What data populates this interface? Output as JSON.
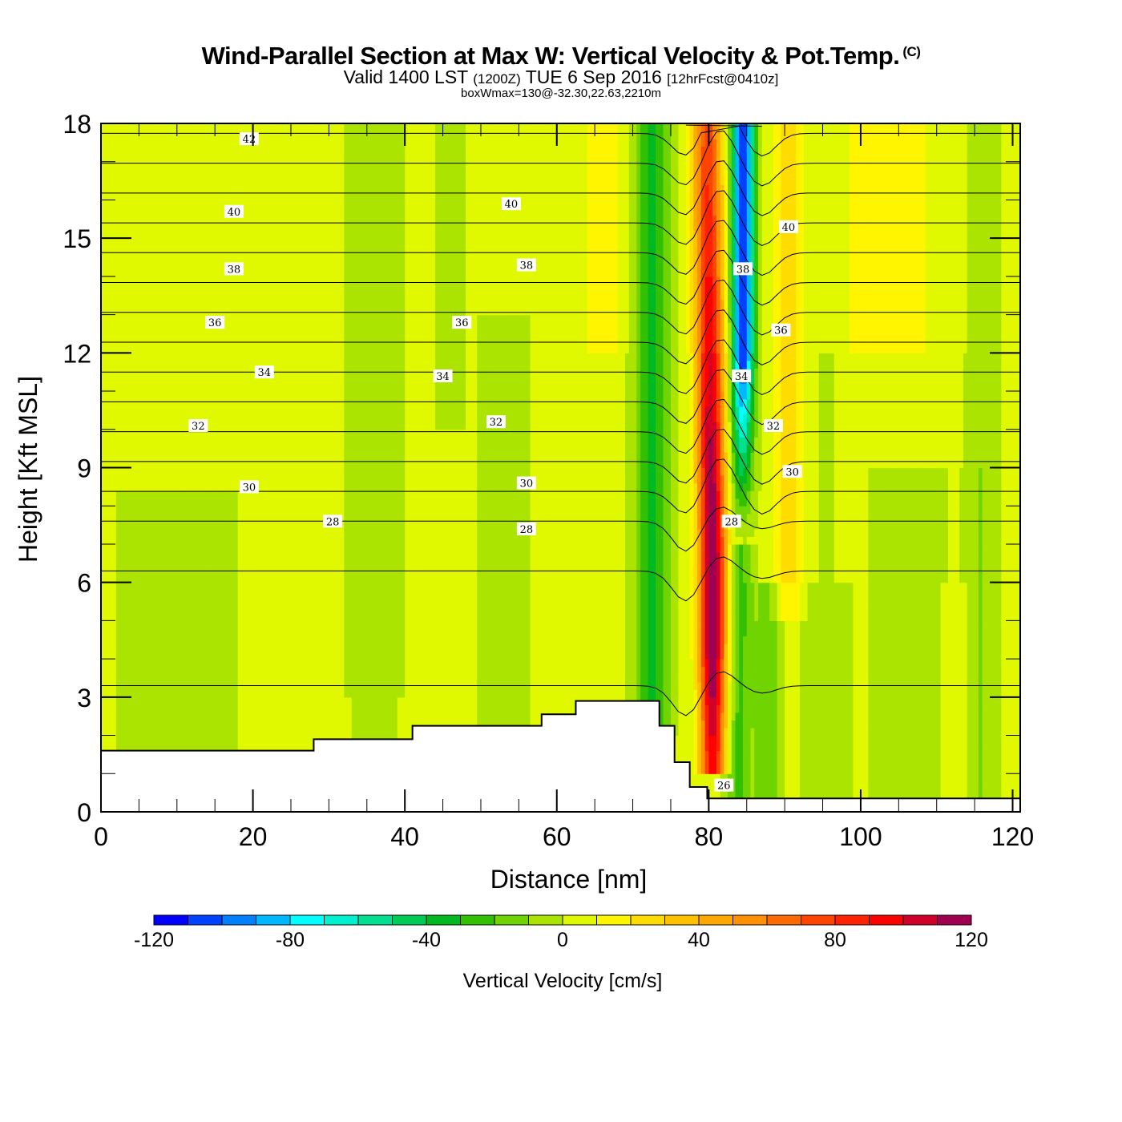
{
  "header": {
    "title": "Wind-Parallel Section at Max W: Vertical Velocity & Pot.Temp.",
    "copyright": "(C)",
    "valid_prefix": "Valid 1400 LST",
    "valid_utc": "(1200Z)",
    "valid_date": "TUE 6 Sep 2016",
    "forecast": "[12hrFcst@0410z]",
    "box_note": "boxWmax=130@-32.30,22.63,2210m"
  },
  "chart_data": {
    "type": "heatmap",
    "title": "Wind-Parallel Section at Max W: Vertical Velocity & Pot.Temp.",
    "xlabel": "Distance [nm]",
    "ylabel": "Height [Kft MSL]",
    "xlim": [
      0,
      121
    ],
    "ylim": [
      0,
      18
    ],
    "x_ticks": [
      "0",
      "20",
      "40",
      "60",
      "80",
      "100",
      "120"
    ],
    "y_ticks": [
      "0",
      "3",
      "6",
      "9",
      "12",
      "15",
      "18"
    ],
    "colorbar": {
      "label": "Vertical Velocity [cm/s]",
      "min": -120,
      "max": 120,
      "step": 10,
      "tick_labels": [
        "-120",
        "-80",
        "-40",
        "0",
        "40",
        "80",
        "120"
      ],
      "colors": [
        "#0000ff",
        "#0040ff",
        "#0080ff",
        "#00b8ff",
        "#00ffff",
        "#00f0d0",
        "#00e090",
        "#00cc55",
        "#00b820",
        "#33c000",
        "#70d400",
        "#aae400",
        "#e0f800",
        "#fff500",
        "#ffdc00",
        "#ffc000",
        "#ffa800",
        "#ff9000",
        "#ff6a00",
        "#ff4400",
        "#ff2200",
        "#ff0000",
        "#d00028",
        "#a00050"
      ]
    },
    "features": [
      {
        "name": "updraft core",
        "x_center_nm": 80.5,
        "max_cm_s": 130,
        "z_top_kft": 18
      },
      {
        "name": "downdraft core",
        "x_center_nm": 84.5,
        "min_cm_s": -115,
        "z_range_kft": [
          8,
          18
        ]
      }
    ],
    "terrain_kft": [
      {
        "x": [
          0,
          28
        ],
        "z": 1.6
      },
      {
        "x": [
          28,
          41
        ],
        "z": 1.9
      },
      {
        "x": [
          41,
          58
        ],
        "z": 2.25
      },
      {
        "x": [
          58,
          62.5
        ],
        "z": 2.55
      },
      {
        "x": [
          62.5,
          73.5
        ],
        "z": 2.9
      },
      {
        "x": [
          73.5,
          75.5
        ],
        "z": 2.25
      },
      {
        "x": [
          75.5,
          77.5
        ],
        "z": 1.3
      },
      {
        "x": [
          77.5,
          79.8
        ],
        "z": 0.65
      },
      {
        "x": [
          79.8,
          121
        ],
        "z": 0.35
      }
    ],
    "theta_contours": {
      "units": "C",
      "interval": 1,
      "labeled_values": [
        "42",
        "40",
        "38",
        "36",
        "34",
        "32",
        "30",
        "28",
        "26"
      ],
      "labels": [
        {
          "text": "42",
          "x": 19.5,
          "z": 17.6
        },
        {
          "text": "40",
          "x": 17.5,
          "z": 15.7
        },
        {
          "text": "40",
          "x": 54,
          "z": 15.9
        },
        {
          "text": "40",
          "x": 90.5,
          "z": 15.3
        },
        {
          "text": "38",
          "x": 17.5,
          "z": 14.2
        },
        {
          "text": "38",
          "x": 56,
          "z": 14.3
        },
        {
          "text": "38",
          "x": 84.5,
          "z": 14.2
        },
        {
          "text": "36",
          "x": 15,
          "z": 12.8
        },
        {
          "text": "36",
          "x": 47.5,
          "z": 12.8
        },
        {
          "text": "36",
          "x": 89.5,
          "z": 12.6
        },
        {
          "text": "34",
          "x": 21.5,
          "z": 11.5
        },
        {
          "text": "34",
          "x": 45,
          "z": 11.4
        },
        {
          "text": "34",
          "x": 84.3,
          "z": 11.4
        },
        {
          "text": "32",
          "x": 12.8,
          "z": 10.1
        },
        {
          "text": "32",
          "x": 52,
          "z": 10.2
        },
        {
          "text": "32",
          "x": 88.5,
          "z": 10.1
        },
        {
          "text": "30",
          "x": 19.5,
          "z": 8.5
        },
        {
          "text": "30",
          "x": 56,
          "z": 8.6
        },
        {
          "text": "30",
          "x": 91,
          "z": 8.9
        },
        {
          "text": "28",
          "x": 30.5,
          "z": 7.6
        },
        {
          "text": "28",
          "x": 56,
          "z": 7.4
        },
        {
          "text": "28",
          "x": 83,
          "z": 7.6
        },
        {
          "text": "26",
          "x": 82,
          "z": 0.7
        }
      ]
    }
  }
}
